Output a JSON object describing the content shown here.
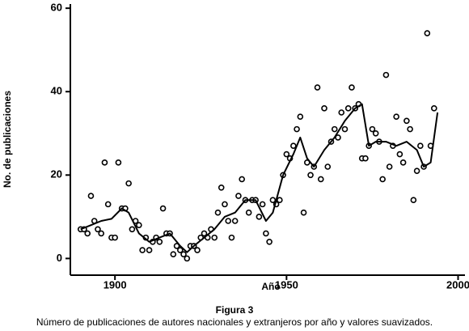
{
  "chart_data": {
    "type": "scatter",
    "xlabel": "Año",
    "ylabel": "No. de publicaciones",
    "caption_title": "Figura 3",
    "caption": "Número de publicaciones de autores nacionales y extranjeros por año y valores suavizados.",
    "xlim": [
      1887,
      2002
    ],
    "ylim": [
      -4,
      61
    ],
    "xticks": [
      1900,
      1950,
      2000
    ],
    "yticks": [
      0,
      20,
      40,
      60
    ],
    "series": [
      {
        "mode": "markers",
        "color": "#000000",
        "x": [
          1890,
          1891,
          1892,
          1893,
          1894,
          1895,
          1896,
          1897,
          1898,
          1899,
          1900,
          1901,
          1902,
          1903,
          1904,
          1905,
          1906,
          1907,
          1908,
          1909,
          1910,
          1911,
          1912,
          1913,
          1914,
          1915,
          1916,
          1917,
          1918,
          1919,
          1920,
          1921,
          1922,
          1923,
          1924,
          1925,
          1926,
          1927,
          1928,
          1929,
          1930,
          1931,
          1932,
          1933,
          1934,
          1935,
          1936,
          1937,
          1938,
          1939,
          1940,
          1941,
          1942,
          1943,
          1944,
          1945,
          1946,
          1947,
          1948,
          1949,
          1950,
          1951,
          1952,
          1953,
          1954,
          1955,
          1956,
          1957,
          1958,
          1959,
          1960,
          1961,
          1962,
          1963,
          1964,
          1965,
          1966,
          1967,
          1968,
          1969,
          1970,
          1971,
          1972,
          1973,
          1974,
          1975,
          1976,
          1977,
          1978,
          1979,
          1980,
          1981,
          1982,
          1983,
          1984,
          1985,
          1986,
          1987,
          1988,
          1989,
          1990,
          1991,
          1992,
          1993
        ],
        "values": [
          7,
          7,
          6,
          15,
          9,
          7,
          6,
          23,
          13,
          5,
          5,
          23,
          12,
          12,
          18,
          7,
          9,
          8,
          2,
          5,
          2,
          4,
          5,
          4,
          12,
          6,
          6,
          1,
          3,
          2,
          1,
          0,
          3,
          3,
          2,
          5,
          6,
          5,
          7,
          5,
          11,
          17,
          13,
          9,
          5,
          9,
          15,
          19,
          14,
          11,
          14,
          14,
          10,
          13,
          6,
          4,
          14,
          13,
          14,
          20,
          25,
          24,
          27,
          31,
          34,
          11,
          23,
          20,
          22,
          41,
          19,
          36,
          22,
          28,
          31,
          29,
          35,
          31,
          36,
          41,
          36,
          37,
          24,
          24,
          27,
          31,
          30,
          28,
          19,
          44,
          22,
          27,
          34,
          25,
          23,
          33,
          31,
          14,
          21,
          27,
          22,
          54,
          27,
          36
        ]
      },
      {
        "mode": "line",
        "color": "#000000",
        "x": [
          1890,
          1893,
          1896,
          1899,
          1902,
          1904,
          1907,
          1910,
          1913,
          1916,
          1919,
          1921,
          1923,
          1926,
          1929,
          1932,
          1935,
          1938,
          1941,
          1944,
          1946,
          1949,
          1952,
          1954,
          1956,
          1958,
          1961,
          1964,
          1967,
          1970,
          1972,
          1974,
          1976,
          1979,
          1982,
          1985,
          1988,
          1990,
          1992,
          1994
        ],
        "values": [
          7,
          8,
          9,
          9.5,
          12,
          11,
          6,
          4,
          5,
          6,
          3,
          1.5,
          3,
          5,
          7,
          10,
          11,
          14,
          14,
          9,
          11,
          20,
          25,
          29,
          24,
          22,
          26,
          29,
          33,
          36,
          37,
          27,
          28,
          28,
          27,
          28,
          26,
          22,
          23,
          35
        ]
      }
    ]
  }
}
